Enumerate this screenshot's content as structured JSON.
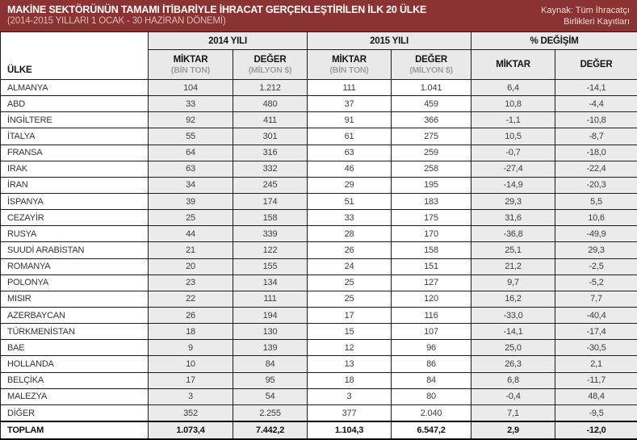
{
  "header": {
    "title": "MAKİNE SEKTÖRÜNÜN TAMAMI İTİBARİYLE İHRACAT GERÇEKLEŞTİRİLEN İLK 20 ÜLKE",
    "subtitle": "(2014-2015 YILLARI 1 OCAK - 30 HAZİRAN DÖNEMİ)",
    "source_line1": "Kaynak: Tüm İhracatçı",
    "source_line2": "Birlikleri Kayıtları"
  },
  "colors": {
    "band_maroon": "#8b3233",
    "header_gray": "#e9e9e9",
    "cell_gray": "#ebebeb",
    "border_black": "#1c1c1c",
    "title_white": "#ffffff",
    "subtitle_pink": "#ddbdbd",
    "unit_gray": "#9e9e9e"
  },
  "table_header": {
    "country_column": "ÜLKE",
    "groups": [
      {
        "label": "2014 YILI"
      },
      {
        "label": "2015 YILI"
      },
      {
        "label": "% DEĞİŞİM"
      }
    ],
    "subheaders": [
      {
        "label": "MİKTAR",
        "unit": "(BİN TON)"
      },
      {
        "label": "DEĞER",
        "unit": "(MİLYON $)"
      },
      {
        "label": "MİKTAR",
        "unit": "(BİN TON)"
      },
      {
        "label": "DEĞER",
        "unit": "(MİLYON $)"
      },
      {
        "label": "MİKTAR",
        "unit": ""
      },
      {
        "label": "DEĞER",
        "unit": ""
      }
    ]
  },
  "chart_data": {
    "type": "table",
    "title": "MAKİNE SEKTÖRÜNÜN TAMAMI İTİBARİYLE İHRACAT GERÇEKLEŞTİRİLEN İLK 20 ÜLKE",
    "subtitle": "(2014-2015 YILLARI 1 OCAK - 30 HAZİRAN DÖNEMİ)",
    "source": "Kaynak: Tüm İhracatçı Birlikleri Kayıtları",
    "columns": [
      "ÜLKE",
      "2014 MİKTAR (BİN TON)",
      "2014 DEĞER (MİLYON $)",
      "2015 MİKTAR (BİN TON)",
      "2015 DEĞER (MİLYON $)",
      "% DEĞİŞİM MİKTAR",
      "% DEĞİŞİM DEĞER"
    ],
    "rows": [
      {
        "country": "ALMANYA",
        "values": [
          "104",
          "1.212",
          "111",
          "1.041",
          "6,4",
          "-14,1"
        ]
      },
      {
        "country": "ABD",
        "values": [
          "33",
          "480",
          "37",
          "459",
          "10,8",
          "-4,4"
        ]
      },
      {
        "country": "İNGİLTERE",
        "values": [
          "92",
          "411",
          "91",
          "366",
          "-1,1",
          "-10,8"
        ]
      },
      {
        "country": "İTALYA",
        "values": [
          "55",
          "301",
          "61",
          "275",
          "10,5",
          "-8,7"
        ]
      },
      {
        "country": "FRANSA",
        "values": [
          "64",
          "316",
          "63",
          "259",
          "-0,7",
          "-18,0"
        ]
      },
      {
        "country": "IRAK",
        "values": [
          "63",
          "332",
          "46",
          "258",
          "-27,4",
          "-22,4"
        ]
      },
      {
        "country": "İRAN",
        "values": [
          "34",
          "245",
          "29",
          "195",
          "-14,9",
          "-20,3"
        ]
      },
      {
        "country": "İSPANYA",
        "values": [
          "39",
          "174",
          "51",
          "183",
          "29,3",
          "5,5"
        ]
      },
      {
        "country": "CEZAYİR",
        "values": [
          "25",
          "158",
          "33",
          "175",
          "31,6",
          "10,6"
        ]
      },
      {
        "country": "RUSYA",
        "values": [
          "44",
          "339",
          "28",
          "170",
          "-36,8",
          "-49,9"
        ]
      },
      {
        "country": "SUUDİ ARABİSTAN",
        "values": [
          "21",
          "122",
          "26",
          "158",
          "25,1",
          "29,3"
        ]
      },
      {
        "country": "ROMANYA",
        "values": [
          "20",
          "155",
          "24",
          "151",
          "21,2",
          "-2,5"
        ]
      },
      {
        "country": "POLONYA",
        "values": [
          "23",
          "134",
          "25",
          "127",
          "9,7",
          "-5,2"
        ]
      },
      {
        "country": "MISIR",
        "values": [
          "22",
          "111",
          "25",
          "120",
          "16,2",
          "7,7"
        ]
      },
      {
        "country": "AZERBAYCAN",
        "values": [
          "26",
          "194",
          "17",
          "116",
          "-33,0",
          "-40,4"
        ]
      },
      {
        "country": "TÜRKMENİSTAN",
        "values": [
          "18",
          "130",
          "15",
          "107",
          "-14,1",
          "-17,4"
        ]
      },
      {
        "country": "BAE",
        "values": [
          "9",
          "139",
          "12",
          "96",
          "25,0",
          "-30,5"
        ]
      },
      {
        "country": "HOLLANDA",
        "values": [
          "10",
          "84",
          "13",
          "86",
          "26,3",
          "2,1"
        ]
      },
      {
        "country": "BELÇİKA",
        "values": [
          "17",
          "95",
          "18",
          "84",
          "6,8",
          "-11,7"
        ]
      },
      {
        "country": "MALEZYA",
        "values": [
          "3",
          "54",
          "3",
          "80",
          "-0,4",
          "48,4"
        ]
      },
      {
        "country": "DİĞER",
        "values": [
          "352",
          "2.255",
          "377",
          "2.040",
          "7,1",
          "-9,5"
        ]
      }
    ],
    "total": {
      "country": "TOPLAM",
      "values": [
        "1.073,4",
        "7.442,2",
        "1.104,3",
        "6.547,2",
        "2,9",
        "-12,0"
      ]
    }
  }
}
